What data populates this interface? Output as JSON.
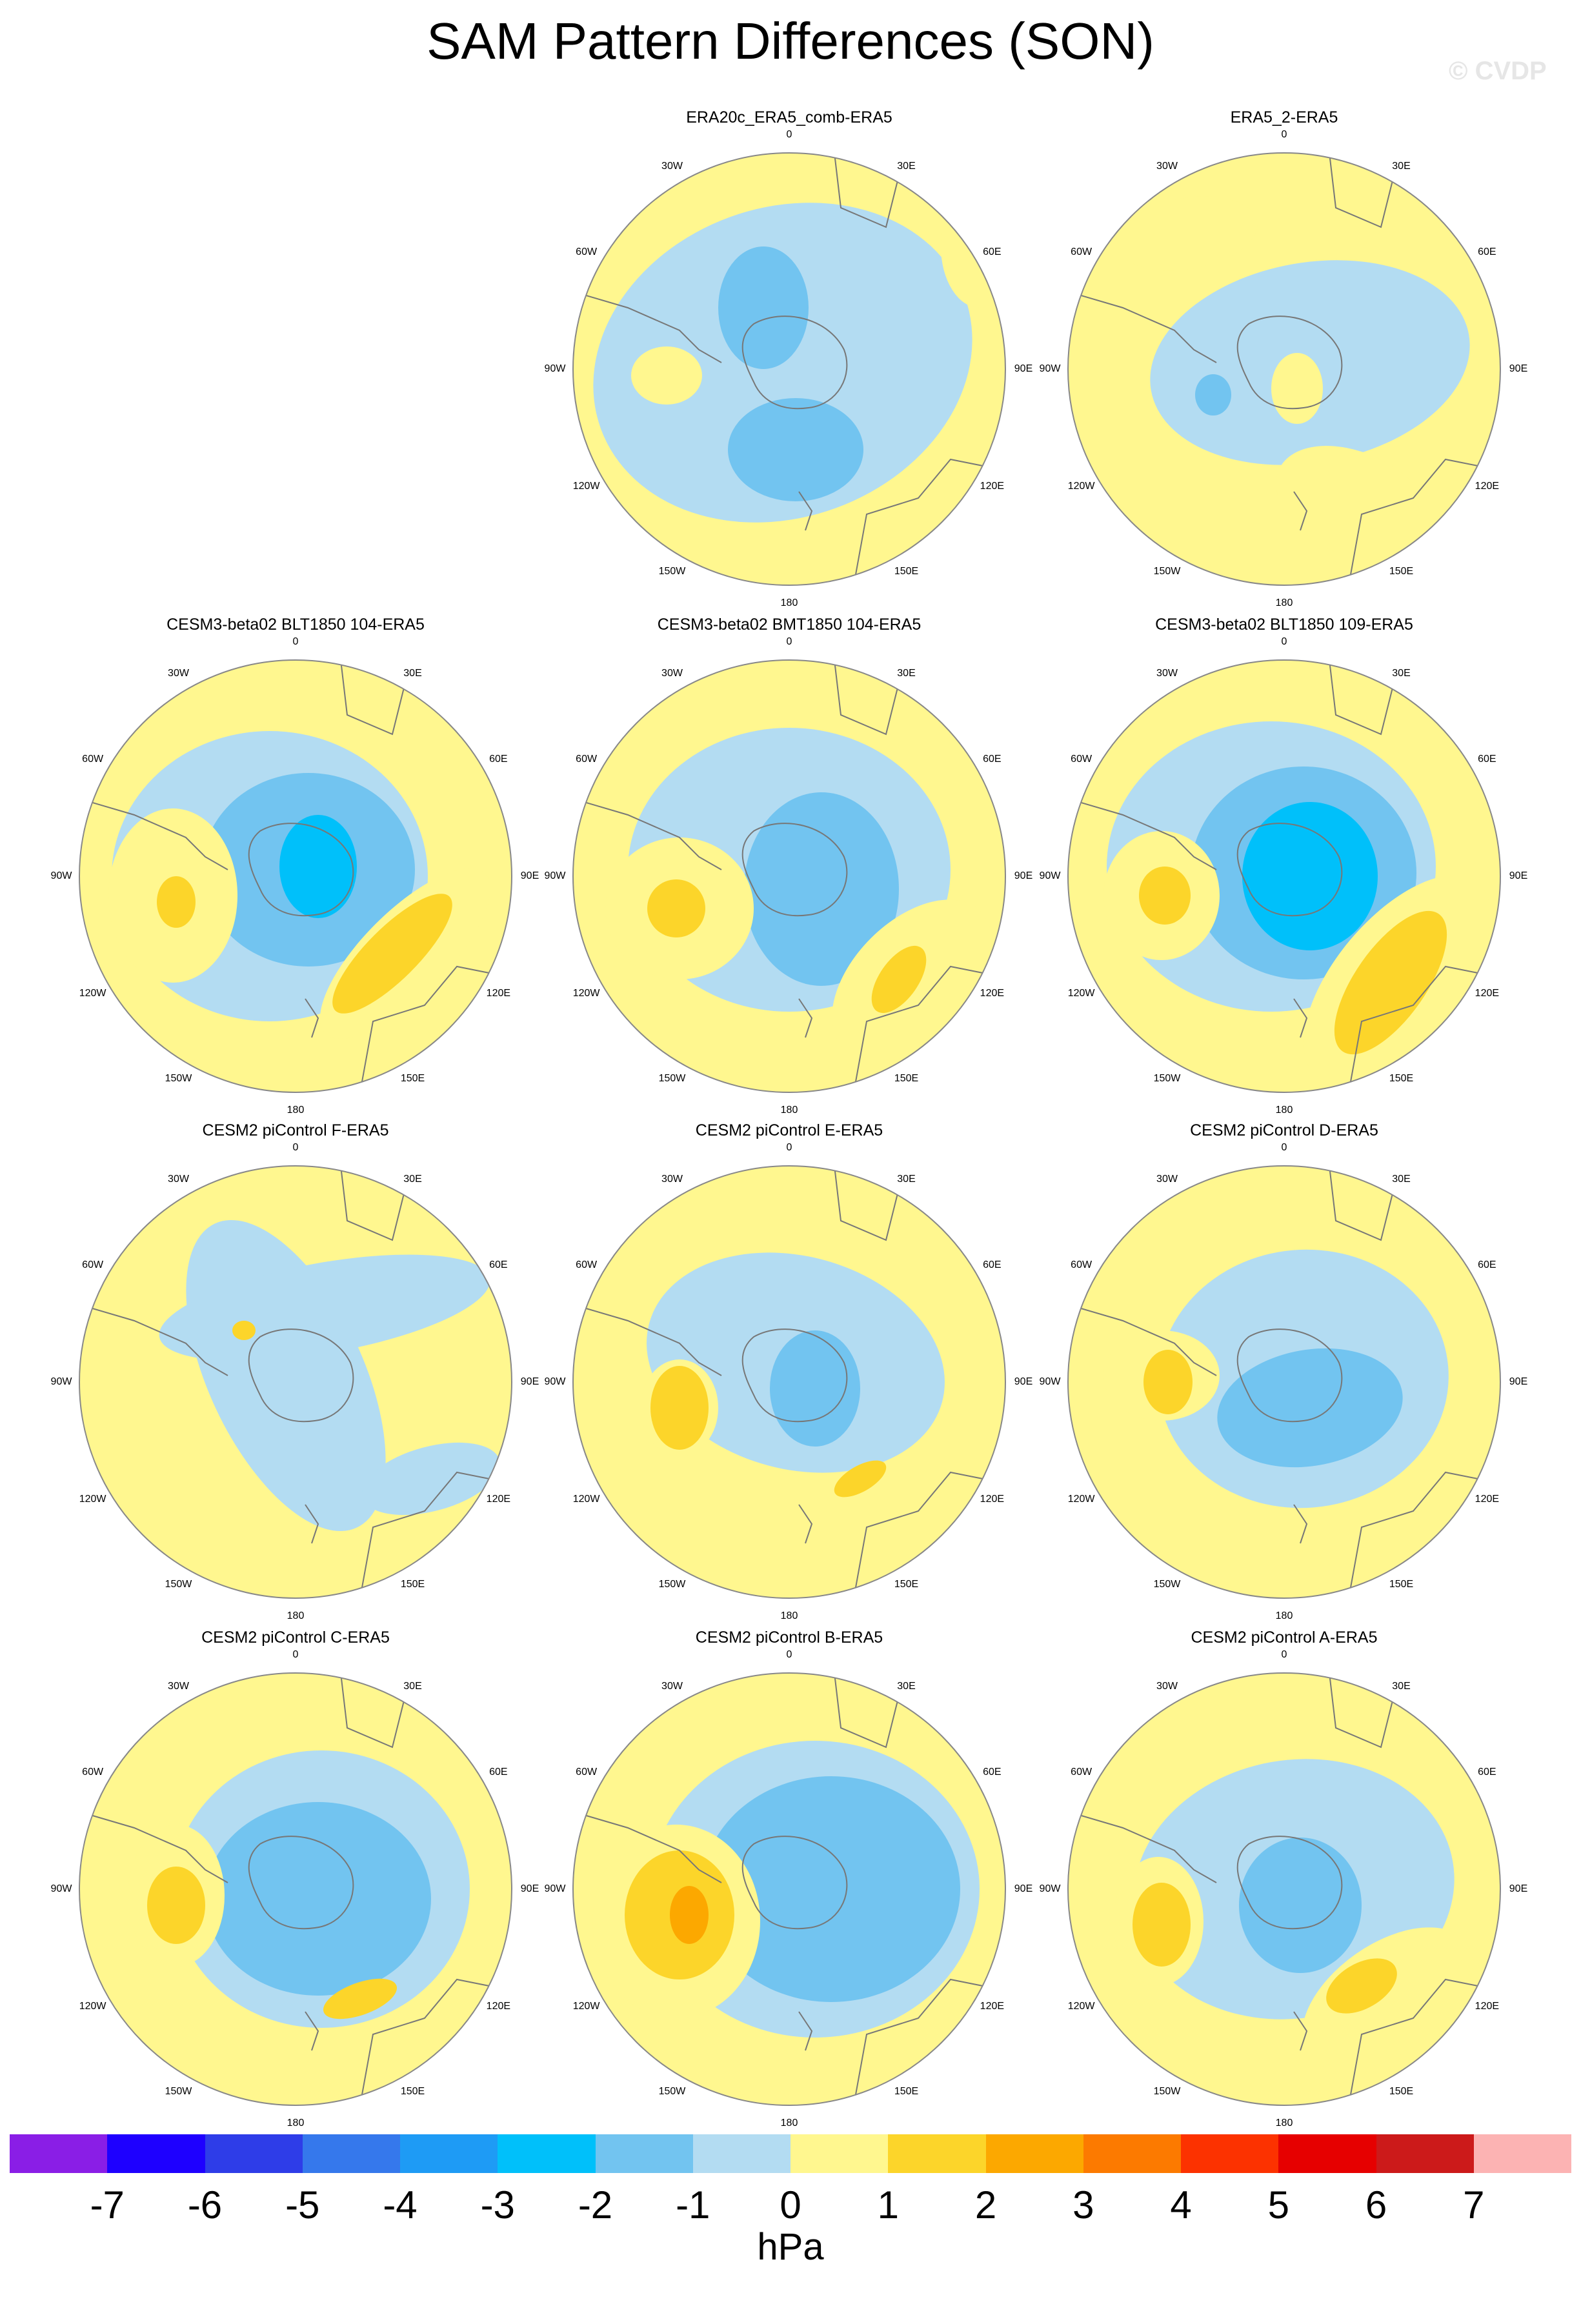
{
  "title": "SAM Pattern Differences (SON)",
  "watermark": "© CVDP",
  "longitude_labels": [
    "0",
    "30E",
    "60E",
    "90E",
    "120E",
    "150E",
    "180",
    "150W",
    "120W",
    "90W",
    "60W",
    "30W"
  ],
  "panels": [
    {
      "title": "ERA20c_ERA5_comb-ERA5",
      "row": 0,
      "col": 1
    },
    {
      "title": "ERA5_2-ERA5",
      "row": 0,
      "col": 2
    },
    {
      "title": "CESM3-beta02 BLT1850 104-ERA5",
      "row": 1,
      "col": 0
    },
    {
      "title": "CESM3-beta02 BMT1850 104-ERA5",
      "row": 1,
      "col": 1
    },
    {
      "title": "CESM3-beta02 BLT1850 109-ERA5",
      "row": 1,
      "col": 2
    },
    {
      "title": "CESM2 piControl F-ERA5",
      "row": 2,
      "col": 0
    },
    {
      "title": "CESM2 piControl E-ERA5",
      "row": 2,
      "col": 1
    },
    {
      "title": "CESM2 piControl D-ERA5",
      "row": 2,
      "col": 2
    },
    {
      "title": "CESM2 piControl C-ERA5",
      "row": 3,
      "col": 0
    },
    {
      "title": "CESM2 piControl B-ERA5",
      "row": 3,
      "col": 1
    },
    {
      "title": "CESM2 piControl A-ERA5",
      "row": 3,
      "col": 2
    }
  ],
  "colorbar": {
    "labels": [
      "-7",
      "-6",
      "-5",
      "-4",
      "-3",
      "-2",
      "-1",
      "0",
      "1",
      "2",
      "3",
      "4",
      "5",
      "6",
      "7"
    ],
    "colors": [
      "#8a1ee6",
      "#1e00ff",
      "#2e3de8",
      "#3578ec",
      "#1e9bf5",
      "#00c0fa",
      "#72c4f0",
      "#b3dcf2",
      "#fff78f",
      "#fcd52a",
      "#fca800",
      "#fc7a00",
      "#fc3200",
      "#e60000",
      "#cc1a1a",
      "#fcb3b3"
    ],
    "units": "hPa"
  },
  "colors": {
    "neg1": "#b3dcf2",
    "neg2": "#72c4f0",
    "neg3": "#00c0fa",
    "pos1": "#fff78f",
    "pos2": "#fcd52a",
    "pos3": "#fca800",
    "coast": "#777777"
  }
}
